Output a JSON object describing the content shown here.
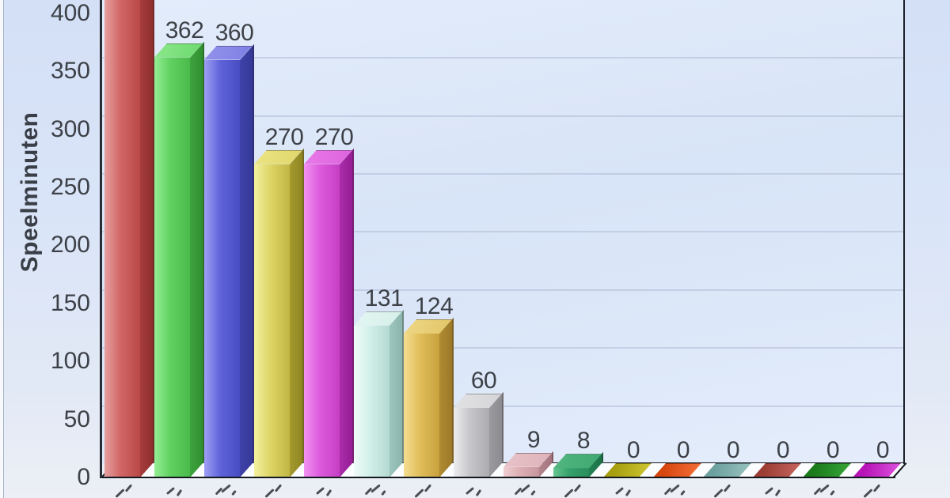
{
  "chart_data": {
    "type": "bar",
    "projection": "3d",
    "title": "",
    "ylabel": "Speelminuten",
    "xlabel": "",
    "y_ticks": [
      400,
      350,
      300,
      250,
      200,
      150,
      100,
      50,
      0
    ],
    "y_axis_visible_range": [
      0,
      410
    ],
    "grid": true,
    "legend": false,
    "x_axis_note": "category labels are rotated and cut off at the bottom image edge (illegible)",
    "series": [
      {
        "name": "Speelminuten",
        "values": [
          null,
          362,
          360,
          270,
          270,
          131,
          124,
          60,
          9,
          8,
          0,
          0,
          0,
          0,
          0,
          0
        ]
      }
    ],
    "bars": [
      {
        "value": null,
        "clipped_above": true,
        "color": {
          "front": [
            "#e7a0a0",
            "#d16666",
            "#b94848"
          ],
          "side": [
            "#a63c3c",
            "#8e2f2f"
          ]
        }
      },
      {
        "value": 362,
        "color": {
          "front": [
            "#94ef94",
            "#60d160",
            "#4abb4a"
          ],
          "side": [
            "#3da33d",
            "#2f8f2f"
          ],
          "top": [
            "#8ce88c",
            "#6cd96c"
          ]
        }
      },
      {
        "value": 360,
        "color": {
          "front": [
            "#9f9ff4",
            "#5f63da",
            "#484dc2"
          ],
          "side": [
            "#3f43aa",
            "#343896"
          ],
          "top": [
            "#9393ec",
            "#7e7ee4"
          ]
        }
      },
      {
        "value": 270,
        "color": {
          "front": [
            "#f4f1a0",
            "#ddd566",
            "#c1b644"
          ],
          "side": [
            "#a49a2e",
            "#8f8622"
          ],
          "top": [
            "#ece484",
            "#dfd66a"
          ]
        }
      },
      {
        "value": 270,
        "color": {
          "front": [
            "#f292f2",
            "#dc5adc",
            "#c53fc5"
          ],
          "side": [
            "#aa2caa",
            "#951d95"
          ],
          "top": [
            "#e97ae9",
            "#dc62dc"
          ]
        }
      },
      {
        "value": 131,
        "color": {
          "front": [
            "#effbf8",
            "#d2efe9",
            "#b5dad2"
          ],
          "side": [
            "#9cc6be",
            "#8ab4ac"
          ],
          "top": [
            "#e4f6f2",
            "#d5efe9"
          ]
        }
      },
      {
        "value": 124,
        "color": {
          "front": [
            "#f5dd92",
            "#e0be5a",
            "#c9a13d"
          ],
          "side": [
            "#b18b33",
            "#9c7929"
          ],
          "top": [
            "#eed786",
            "#e2c567"
          ]
        }
      },
      {
        "value": 60,
        "color": {
          "front": [
            "#ededef",
            "#c7c7cb",
            "#acacb0"
          ],
          "side": [
            "#9b9b9f",
            "#8c8c90"
          ],
          "top": [
            "#e2e2e4",
            "#d4d4d6"
          ]
        }
      },
      {
        "value": 9,
        "color": {
          "front": [
            "#efced2",
            "#ddafb5",
            "#c7969e"
          ],
          "side": [
            "#b4858d",
            "#a4757d"
          ],
          "top": [
            "#e8c3c9",
            "#ddb2b8"
          ]
        }
      },
      {
        "value": 8,
        "color": {
          "front": [
            "#66c691",
            "#35a16c",
            "#2a8e5c"
          ],
          "side": [
            "#238253",
            "#1c7348"
          ],
          "top": [
            "#52b680",
            "#3fa872"
          ]
        }
      },
      {
        "value": 0,
        "color": {
          "flat": [
            "#a89f10",
            "#cac32f"
          ]
        }
      },
      {
        "value": 0,
        "color": {
          "flat": [
            "#d84610",
            "#f06d34"
          ]
        }
      },
      {
        "value": 0,
        "color": {
          "flat": [
            "#6da19f",
            "#96bfbd"
          ]
        }
      },
      {
        "value": 0,
        "color": {
          "flat": [
            "#9d3e35",
            "#c2625b"
          ]
        }
      },
      {
        "value": 0,
        "color": {
          "flat": [
            "#1b7b1b",
            "#35a235"
          ]
        }
      },
      {
        "value": 0,
        "color": {
          "flat": [
            "#b713b7",
            "#d94dd9"
          ]
        }
      }
    ]
  }
}
